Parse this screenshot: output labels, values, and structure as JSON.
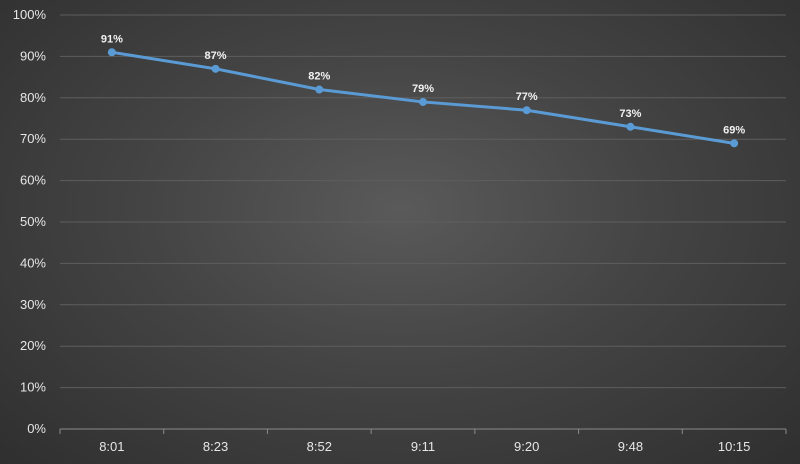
{
  "chart_data": {
    "type": "line",
    "categories": [
      "8:01",
      "8:23",
      "8:52",
      "9:11",
      "9:20",
      "9:48",
      "10:15"
    ],
    "series": [
      {
        "values": [
          91,
          87,
          82,
          79,
          77,
          73,
          69
        ]
      }
    ],
    "data_labels": [
      "91%",
      "87%",
      "82%",
      "79%",
      "77%",
      "73%",
      "69%"
    ],
    "y_ticks": [
      "0%",
      "10%",
      "20%",
      "30%",
      "40%",
      "50%",
      "60%",
      "70%",
      "80%",
      "90%",
      "100%"
    ],
    "ylim": [
      0,
      100
    ],
    "y_step": 10,
    "grid": true,
    "legend": "none",
    "colors": {
      "line": "#5b9bd5",
      "marker": "#5b9bd5",
      "grid": "#5e5e5e",
      "axis": "#8a8a8a"
    }
  }
}
